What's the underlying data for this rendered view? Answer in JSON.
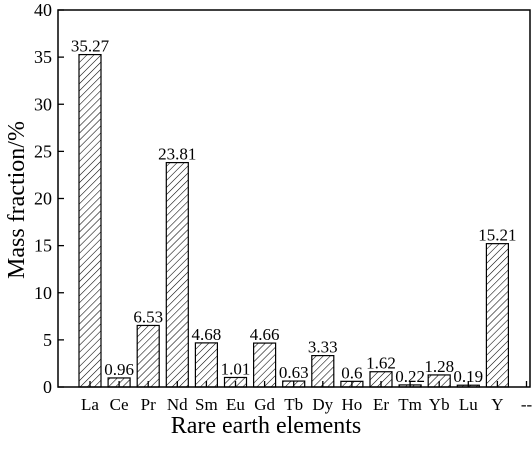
{
  "chart_data": {
    "type": "bar",
    "title": "",
    "xlabel": "Rare earth elements",
    "ylabel": "Mass fraction/%",
    "ylim": [
      0,
      40
    ],
    "yticks": [
      0,
      5,
      10,
      15,
      20,
      25,
      30,
      35,
      40
    ],
    "categories": [
      "La",
      "Ce",
      "Pr",
      "Nd",
      "Sm",
      "Eu",
      "Gd",
      "Tb",
      "Dy",
      "Ho",
      "Er",
      "Tm",
      "Yb",
      "Lu",
      "Y",
      "--"
    ],
    "values": [
      35.27,
      0.96,
      6.53,
      23.81,
      4.68,
      1.01,
      4.66,
      0.63,
      3.33,
      0.6,
      1.62,
      0.22,
      1.28,
      0.19,
      15.21,
      null
    ],
    "value_labels": [
      "35.27",
      "0.96",
      "6.53",
      "23.81",
      "4.68",
      "1.01",
      "4.66",
      "0.63",
      "3.33",
      "0.6",
      "1.62",
      "0.22",
      "1.28",
      "0.19",
      "15.21",
      ""
    ],
    "bar_fill": "diagonal-hatch",
    "grid": false,
    "legend": "none",
    "colors": {
      "bar_stroke": "#000000",
      "hatch": "#000000",
      "axis": "#000000",
      "background": "#ffffff"
    }
  }
}
